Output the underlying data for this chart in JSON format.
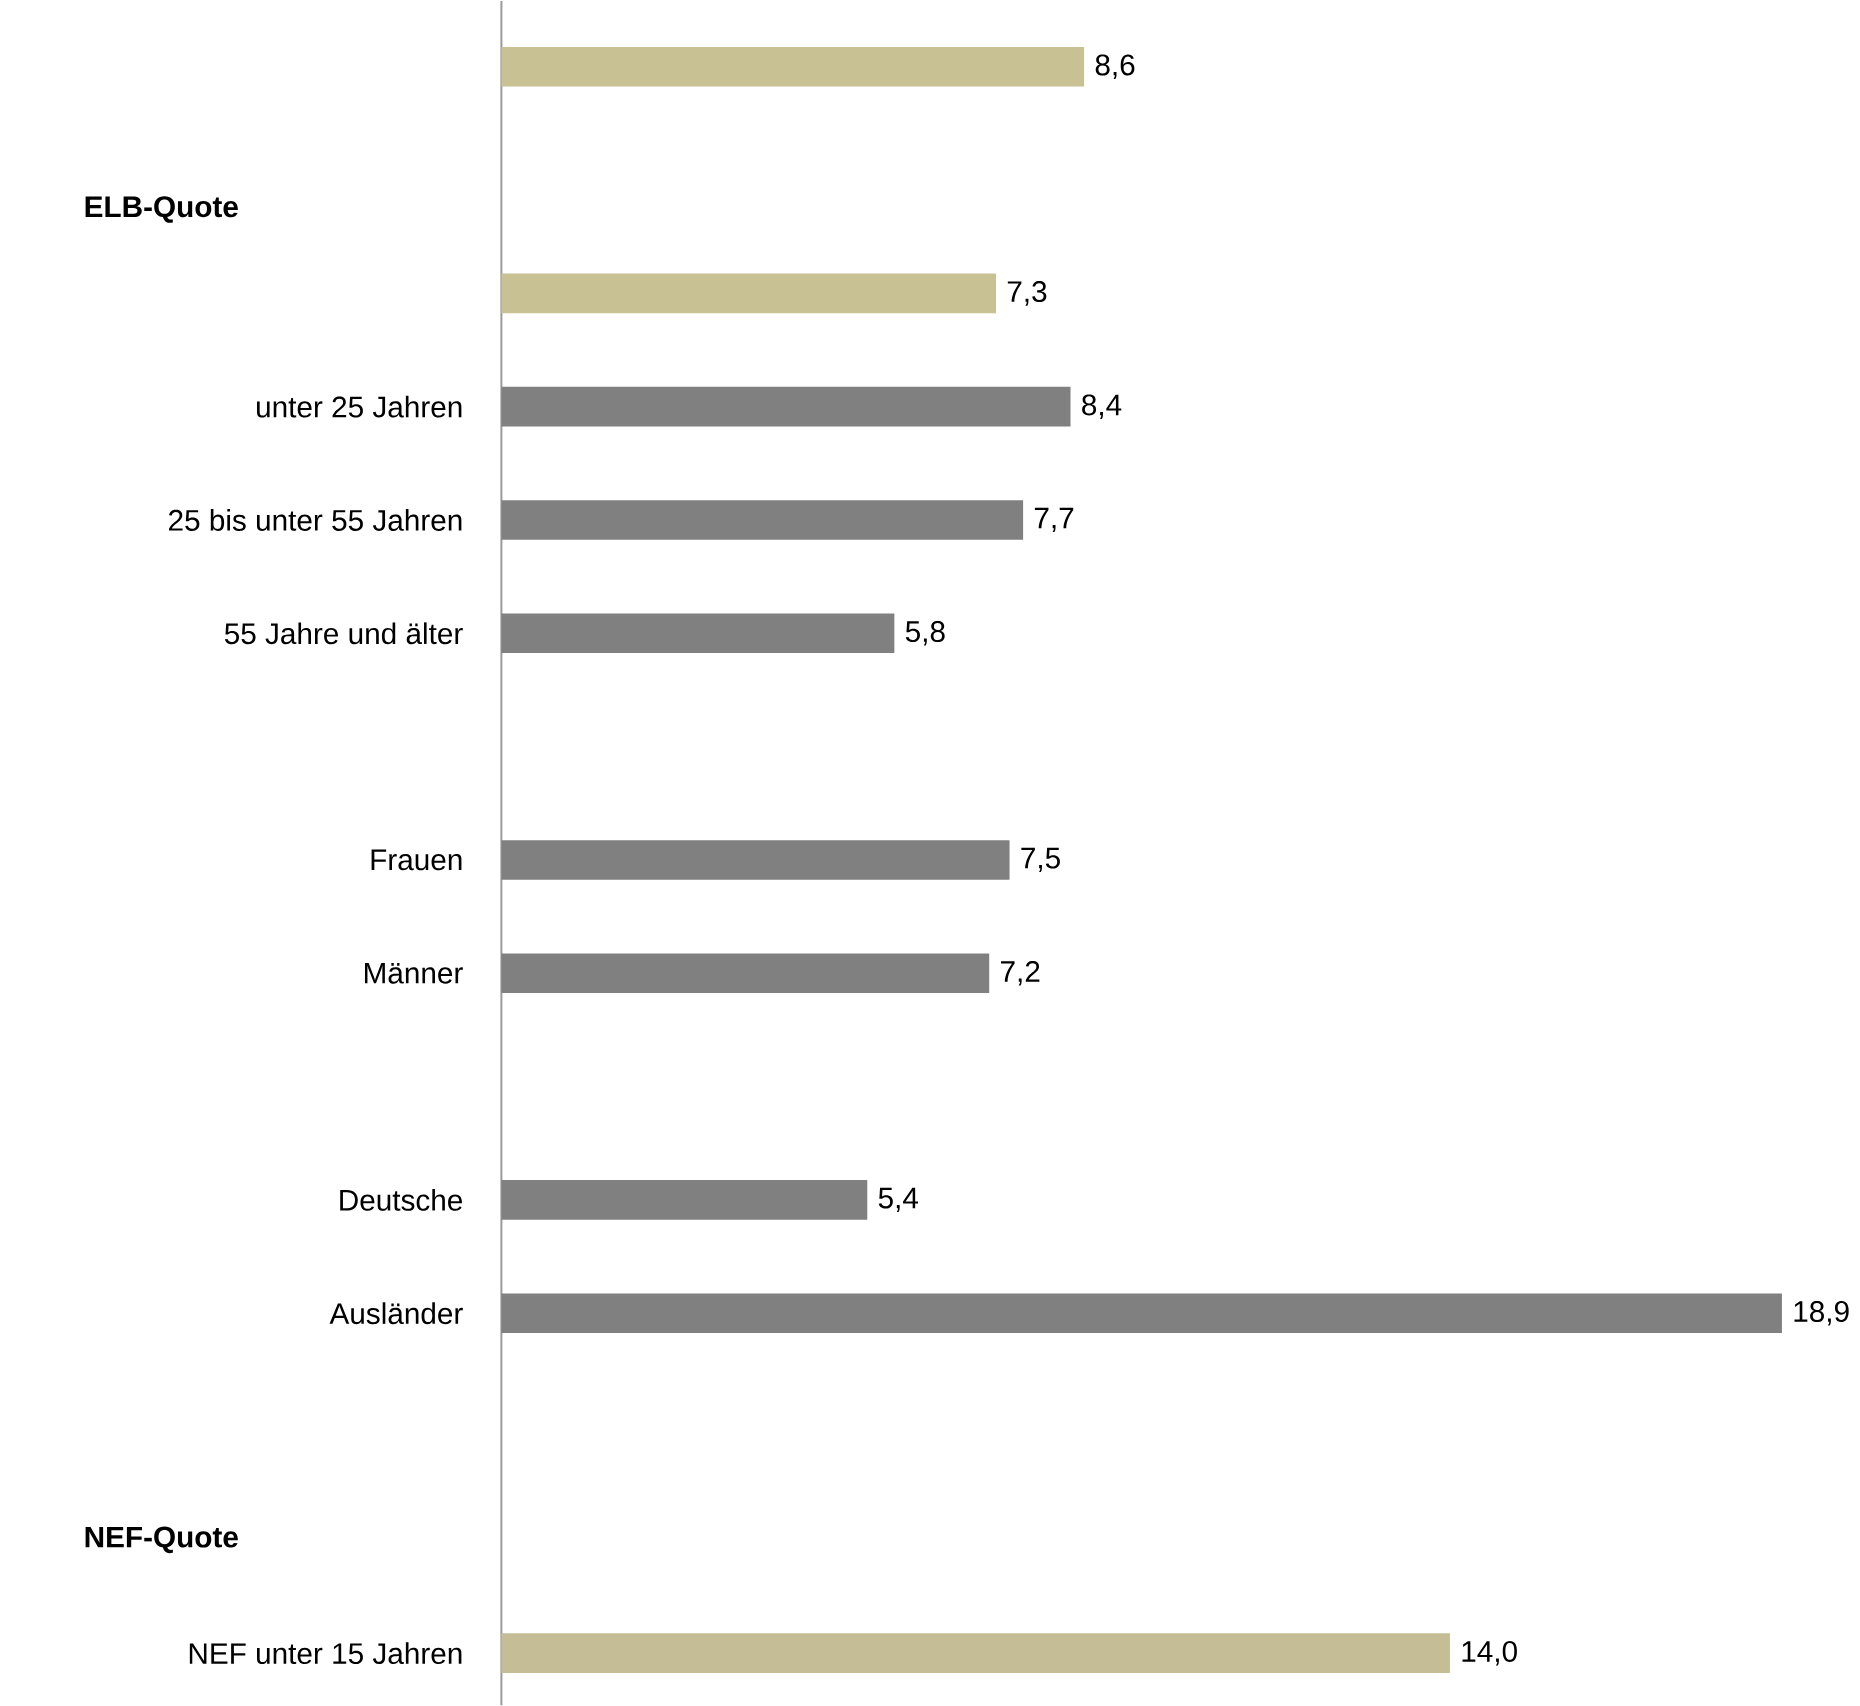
{
  "chart_data": {
    "type": "bar",
    "orientation": "horizontal",
    "tick_labels": "y",
    "categories": [
      null,
      null,
      null,
      "unter 25 Jahren",
      "25 bis unter 55 Jahren",
      "55 Jahre und älter",
      null,
      "Frauen",
      "Männer",
      null,
      "Deutsche",
      "Ausländer",
      null,
      null,
      "NEF unter 15 Jahren"
    ],
    "values": [
      8.6,
      null,
      7.3,
      8.4,
      7.7,
      5.8,
      null,
      7.5,
      7.2,
      null,
      5.4,
      18.9,
      null,
      null,
      14.0
    ],
    "value_labels": [
      "8,6",
      null,
      "7,3",
      "8,4",
      "7,7",
      "5,8",
      null,
      "7,5",
      "7,2",
      null,
      "5,4",
      "18,9",
      null,
      null,
      "14,0"
    ],
    "colors": [
      "#c8c193",
      null,
      "#c8c193",
      "#808080",
      "#808080",
      "#808080",
      null,
      "#808080",
      "#808080",
      null,
      "#808080",
      "#808080",
      null,
      null,
      "#c5bd96"
    ],
    "annotations": [
      "ELB-Quote",
      "NEF-Quote"
    ]
  }
}
